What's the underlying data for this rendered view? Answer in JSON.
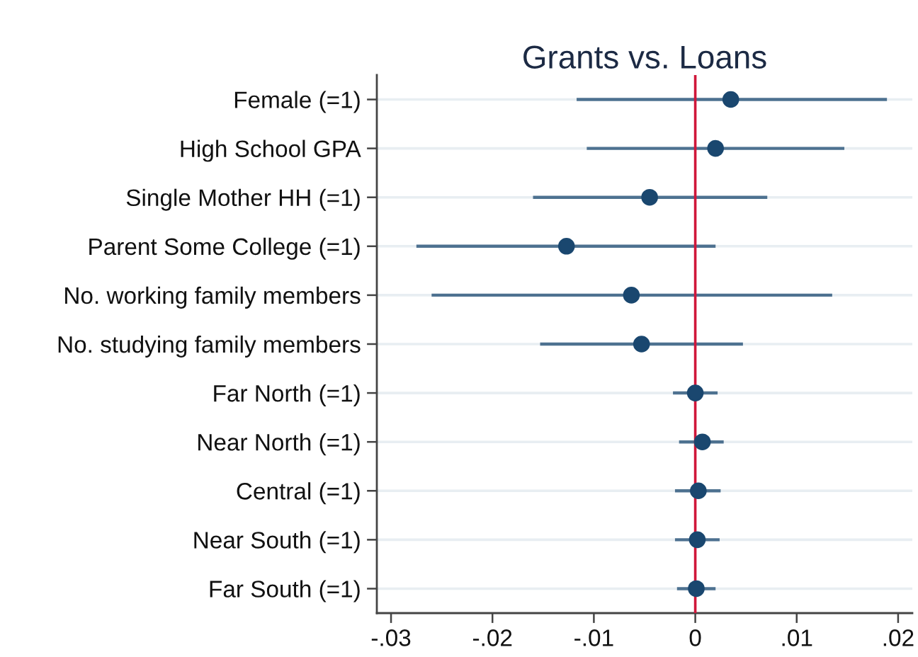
{
  "chart_data": {
    "type": "scatter",
    "orientation": "horizontal",
    "title": "Grants vs. Loans",
    "categories": [
      "Female (=1)",
      "High School GPA",
      "Single Mother HH (=1)",
      "Parent Some College (=1)",
      "No. working family members",
      "No. studying family members",
      "Far North (=1)",
      "Near North (=1)",
      "Central (=1)",
      "Near South (=1)",
      "Far South (=1)"
    ],
    "values": [
      0.0035,
      0.002,
      -0.0045,
      -0.0127,
      -0.0063,
      -0.0053,
      0.0,
      0.0007,
      0.0003,
      0.0002,
      0.0001
    ],
    "errors": [
      [
        -0.0117,
        0.0189
      ],
      [
        -0.0107,
        0.0147
      ],
      [
        -0.016,
        0.0071
      ],
      [
        -0.0275,
        0.002
      ],
      [
        -0.026,
        0.0135
      ],
      [
        -0.0153,
        0.0047
      ],
      [
        -0.0022,
        0.0022
      ],
      [
        -0.0016,
        0.0028
      ],
      [
        -0.002,
        0.0025
      ],
      [
        -0.002,
        0.0024
      ],
      [
        -0.0018,
        0.002
      ]
    ],
    "color": "#1a476f",
    "marker": "circle",
    "xlim": [
      -0.0314,
      0.0214
    ],
    "xticks": [
      {
        "value": -0.03,
        "label": "-.03"
      },
      {
        "value": -0.02,
        "label": "-.02"
      },
      {
        "value": -0.01,
        "label": "-.01"
      },
      0,
      {
        "value": 0.01,
        "label": ".01"
      },
      {
        "value": 0.02,
        "label": ".02"
      }
    ],
    "ref_lines": [
      {
        "axis": "x",
        "value": 0,
        "color": "#d0173a"
      }
    ],
    "grid": "y"
  }
}
